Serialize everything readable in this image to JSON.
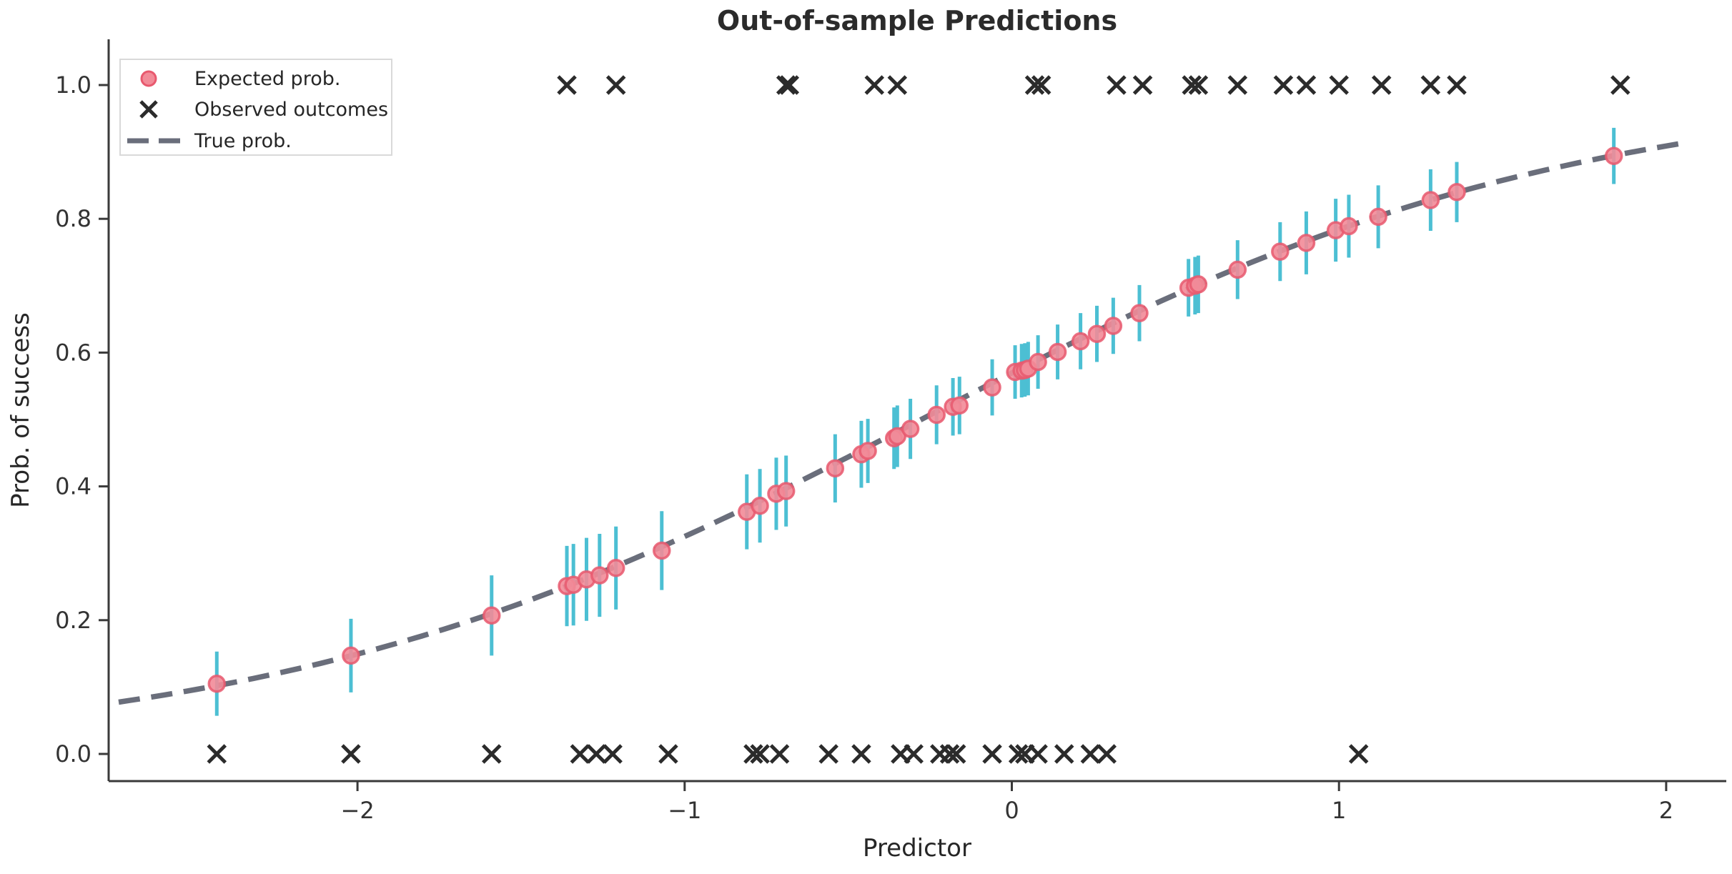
{
  "title": "Out-of-sample Predictions",
  "colors": {
    "expected_fill": "#f28b98",
    "expected_edge": "#e8596e",
    "errorbar": "#4cbfd3",
    "observed": "#2b2b2b",
    "curve": "#6a6e7b",
    "spine": "#3a3a3a",
    "tick": "#3a3a3a",
    "legend_border": "#d9d9d9",
    "legend_bg": "#ffffff"
  },
  "legend": {
    "position": "upper left",
    "items": [
      {
        "label": "Expected prob.",
        "marker": "pink-dot"
      },
      {
        "label": "Observed outcomes",
        "marker": "black-x"
      },
      {
        "label": "True prob.",
        "marker": "gray-dashed-line"
      }
    ]
  },
  "chart_data": {
    "type": "scatter",
    "title": "Out-of-sample Predictions",
    "xlabel": "Predictor",
    "ylabel": "Prob. of success",
    "xlim": [
      -2.76,
      2.2
    ],
    "ylim": [
      -0.04,
      1.06
    ],
    "grid": false,
    "x_ticks": [
      -2,
      -1,
      0,
      1,
      2
    ],
    "x_tick_labels": [
      "−2",
      "−1",
      "0",
      "1",
      "2"
    ],
    "y_ticks": [
      0.0,
      0.2,
      0.4,
      0.6,
      0.8,
      1.0
    ],
    "y_tick_labels": [
      "0.0",
      "0.2",
      "0.4",
      "0.6",
      "0.8",
      "1.0"
    ],
    "series": [
      {
        "name": "Expected prob.",
        "type": "scatter_with_errorbars",
        "points": [
          {
            "x": -2.43,
            "p": 0.105,
            "err": 0.048
          },
          {
            "x": -2.02,
            "p": 0.147,
            "err": 0.055
          },
          {
            "x": -1.59,
            "p": 0.207,
            "err": 0.06
          },
          {
            "x": -1.36,
            "p": 0.251,
            "err": 0.06
          },
          {
            "x": -1.34,
            "p": 0.253,
            "err": 0.061
          },
          {
            "x": -1.3,
            "p": 0.261,
            "err": 0.062
          },
          {
            "x": -1.26,
            "p": 0.267,
            "err": 0.062
          },
          {
            "x": -1.21,
            "p": 0.278,
            "err": 0.062
          },
          {
            "x": -1.07,
            "p": 0.304,
            "err": 0.059
          },
          {
            "x": -0.81,
            "p": 0.362,
            "err": 0.056
          },
          {
            "x": -0.77,
            "p": 0.371,
            "err": 0.055
          },
          {
            "x": -0.72,
            "p": 0.389,
            "err": 0.054
          },
          {
            "x": -0.69,
            "p": 0.393,
            "err": 0.053
          },
          {
            "x": -0.54,
            "p": 0.427,
            "err": 0.051
          },
          {
            "x": -0.46,
            "p": 0.448,
            "err": 0.05
          },
          {
            "x": -0.44,
            "p": 0.453,
            "err": 0.048
          },
          {
            "x": -0.36,
            "p": 0.472,
            "err": 0.046
          },
          {
            "x": -0.35,
            "p": 0.475,
            "err": 0.046
          },
          {
            "x": -0.31,
            "p": 0.486,
            "err": 0.045
          },
          {
            "x": -0.23,
            "p": 0.507,
            "err": 0.044
          },
          {
            "x": -0.18,
            "p": 0.519,
            "err": 0.043
          },
          {
            "x": -0.16,
            "p": 0.521,
            "err": 0.043
          },
          {
            "x": -0.06,
            "p": 0.548,
            "err": 0.042
          },
          {
            "x": 0.01,
            "p": 0.571,
            "err": 0.04
          },
          {
            "x": 0.03,
            "p": 0.573,
            "err": 0.04
          },
          {
            "x": 0.04,
            "p": 0.574,
            "err": 0.04
          },
          {
            "x": 0.05,
            "p": 0.576,
            "err": 0.04
          },
          {
            "x": 0.08,
            "p": 0.586,
            "err": 0.04
          },
          {
            "x": 0.14,
            "p": 0.601,
            "err": 0.041
          },
          {
            "x": 0.21,
            "p": 0.617,
            "err": 0.042
          },
          {
            "x": 0.26,
            "p": 0.628,
            "err": 0.042
          },
          {
            "x": 0.31,
            "p": 0.64,
            "err": 0.042
          },
          {
            "x": 0.39,
            "p": 0.659,
            "err": 0.042
          },
          {
            "x": 0.54,
            "p": 0.697,
            "err": 0.043
          },
          {
            "x": 0.56,
            "p": 0.7,
            "err": 0.043
          },
          {
            "x": 0.57,
            "p": 0.702,
            "err": 0.043
          },
          {
            "x": 0.69,
            "p": 0.724,
            "err": 0.044
          },
          {
            "x": 0.82,
            "p": 0.751,
            "err": 0.044
          },
          {
            "x": 0.9,
            "p": 0.764,
            "err": 0.047
          },
          {
            "x": 0.99,
            "p": 0.783,
            "err": 0.047
          },
          {
            "x": 1.03,
            "p": 0.789,
            "err": 0.047
          },
          {
            "x": 1.12,
            "p": 0.803,
            "err": 0.047
          },
          {
            "x": 1.28,
            "p": 0.828,
            "err": 0.046
          },
          {
            "x": 1.36,
            "p": 0.84,
            "err": 0.045
          },
          {
            "x": 1.84,
            "p": 0.894,
            "err": 0.042
          }
        ]
      },
      {
        "name": "Observed outcomes",
        "type": "scatter_x_markers",
        "success_y": 1.0,
        "failure_y": 0.0,
        "success_x": [
          -1.36,
          -1.21,
          -0.69,
          -0.68,
          -0.42,
          -0.35,
          0.07,
          0.09,
          0.32,
          0.4,
          0.55,
          0.57,
          0.69,
          0.83,
          0.9,
          1.0,
          1.13,
          1.28,
          1.36,
          1.86
        ],
        "failure_x": [
          -2.43,
          -2.02,
          -1.59,
          -1.32,
          -1.27,
          -1.22,
          -1.05,
          -0.79,
          -0.77,
          -0.71,
          -0.56,
          -0.46,
          -0.34,
          -0.3,
          -0.22,
          -0.19,
          -0.17,
          -0.06,
          0.02,
          0.04,
          0.08,
          0.16,
          0.24,
          0.29,
          1.06
        ]
      },
      {
        "name": "True prob.",
        "type": "dashed_logistic_curve",
        "curve": {
          "intercept": 0.28,
          "slope": 1.01,
          "x_start": -2.73,
          "x_end": 2.07
        }
      }
    ]
  }
}
